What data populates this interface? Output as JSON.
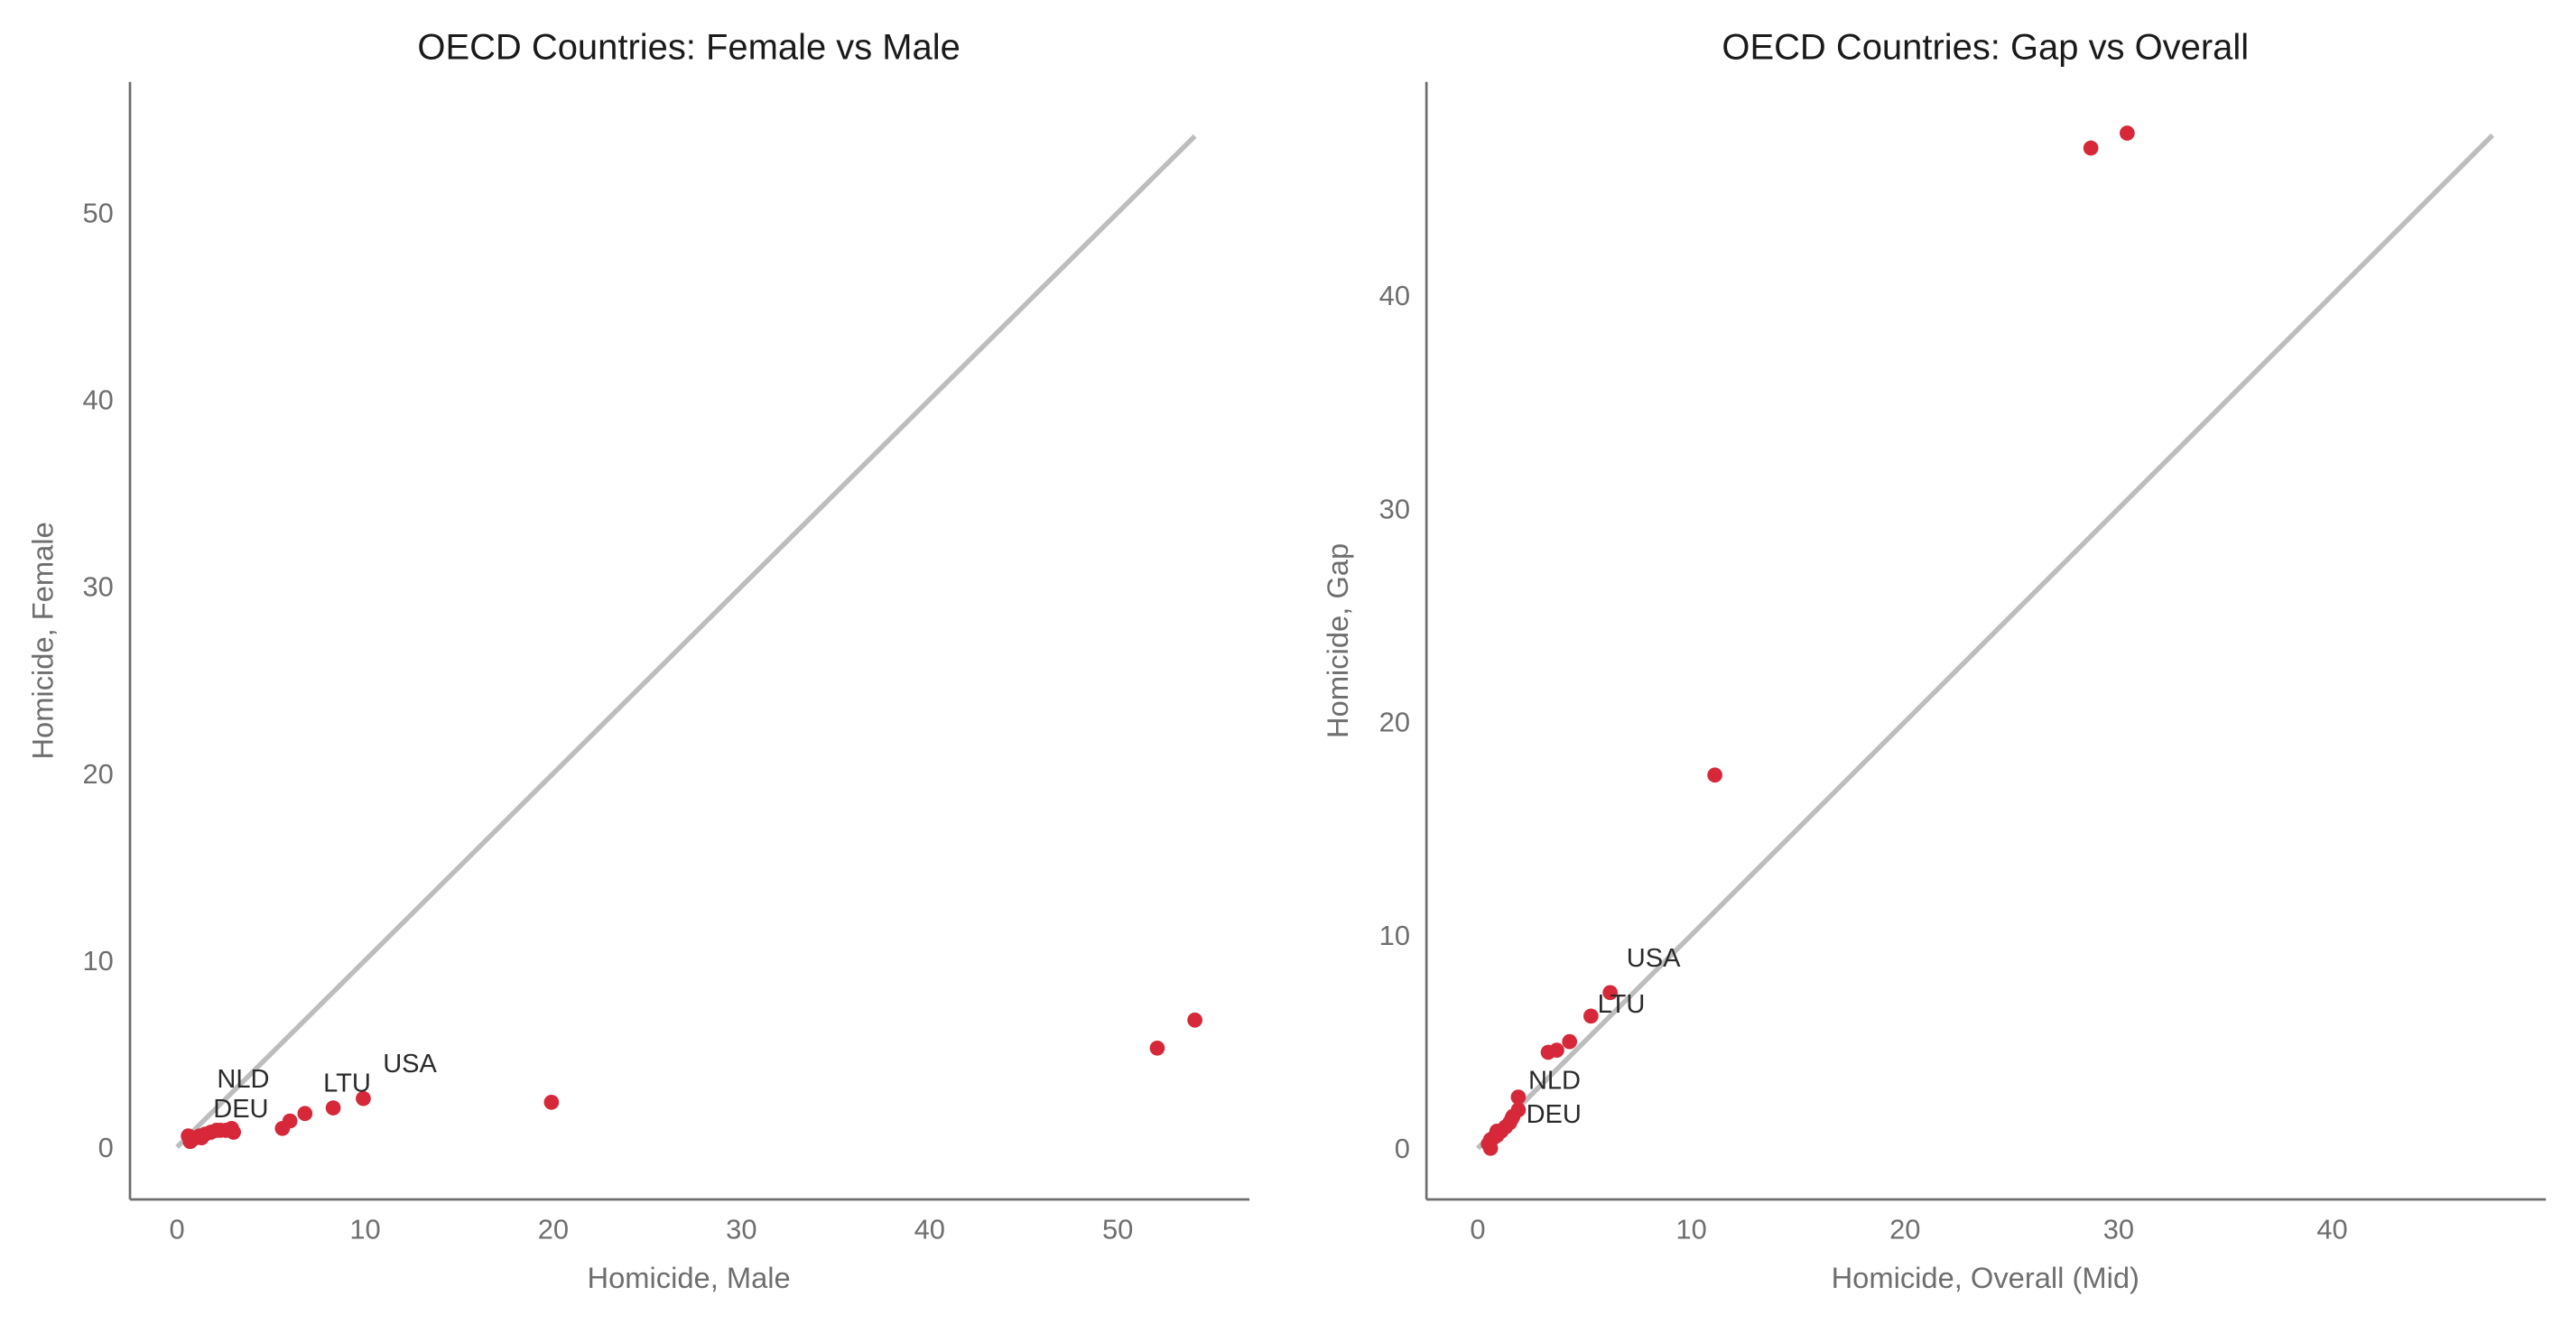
{
  "colors": {
    "point": "#d62839",
    "diagonal": "#bdbdbd",
    "axis": "#6e6e6e"
  },
  "chart_data": [
    {
      "type": "scatter",
      "title": "OECD Countries: Female vs Male",
      "xlabel": "Homicide, Male",
      "ylabel": "Homicide, Female",
      "xlim": [
        -2.5,
        57
      ],
      "ylim": [
        -2.8,
        57
      ],
      "xticks": [
        0,
        10,
        20,
        30,
        40,
        50
      ],
      "yticks": [
        0,
        10,
        20,
        30,
        40,
        50
      ],
      "grid": false,
      "reference_line": {
        "from": [
          0,
          0
        ],
        "to": [
          54.1,
          54.1
        ]
      },
      "points": [
        {
          "x": 54.1,
          "y": 6.8
        },
        {
          "x": 52.1,
          "y": 5.3
        },
        {
          "x": 19.9,
          "y": 2.4
        },
        {
          "x": 9.9,
          "y": 2.6,
          "label": "USA"
        },
        {
          "x": 8.3,
          "y": 2.1,
          "label": "LTU"
        },
        {
          "x": 6.8,
          "y": 1.8
        },
        {
          "x": 6.0,
          "y": 1.4
        },
        {
          "x": 5.6,
          "y": 1.0
        },
        {
          "x": 3.0,
          "y": 0.8
        },
        {
          "x": 2.9,
          "y": 1.0
        },
        {
          "x": 2.6,
          "y": 0.9
        },
        {
          "x": 2.3,
          "y": 0.9,
          "label": "NLD"
        },
        {
          "x": 2.1,
          "y": 0.9,
          "label": "DEU"
        },
        {
          "x": 1.8,
          "y": 0.8
        },
        {
          "x": 1.5,
          "y": 0.7
        },
        {
          "x": 1.3,
          "y": 0.5
        },
        {
          "x": 1.2,
          "y": 0.6
        },
        {
          "x": 1.0,
          "y": 0.5
        },
        {
          "x": 0.8,
          "y": 0.4
        },
        {
          "x": 0.7,
          "y": 0.3
        },
        {
          "x": 0.6,
          "y": 0.6
        }
      ]
    },
    {
      "type": "scatter",
      "title": "OECD Countries: Gap vs Overall",
      "xlabel": "Homicide, Overall (Mid)",
      "ylabel": "Homicide, Gap",
      "xlim": [
        -2.4,
        50
      ],
      "ylim": [
        -2.4,
        50
      ],
      "xticks": [
        0,
        10,
        20,
        30,
        40
      ],
      "yticks": [
        0,
        10,
        20,
        30,
        40
      ],
      "grid": false,
      "reference_line": {
        "from": [
          0,
          0
        ],
        "to": [
          47.5,
          47.5
        ]
      },
      "points": [
        {
          "x": 30.4,
          "y": 47.6
        },
        {
          "x": 28.7,
          "y": 46.9
        },
        {
          "x": 11.1,
          "y": 17.5
        },
        {
          "x": 6.2,
          "y": 7.3,
          "label": "USA"
        },
        {
          "x": 5.3,
          "y": 6.2,
          "label": "LTU"
        },
        {
          "x": 4.3,
          "y": 5.0
        },
        {
          "x": 3.7,
          "y": 4.6
        },
        {
          "x": 3.3,
          "y": 4.5
        },
        {
          "x": 1.9,
          "y": 2.4
        },
        {
          "x": 1.9,
          "y": 1.8
        },
        {
          "x": 1.65,
          "y": 1.5
        },
        {
          "x": 1.6,
          "y": 1.4,
          "label": "NLD"
        },
        {
          "x": 1.5,
          "y": 1.2,
          "label": "DEU"
        },
        {
          "x": 1.3,
          "y": 1.0
        },
        {
          "x": 1.1,
          "y": 0.8
        },
        {
          "x": 0.9,
          "y": 0.6
        },
        {
          "x": 0.9,
          "y": 0.8
        },
        {
          "x": 0.75,
          "y": 0.5
        },
        {
          "x": 0.6,
          "y": 0.4
        },
        {
          "x": 0.5,
          "y": 0.2
        },
        {
          "x": 0.6,
          "y": 0.0
        }
      ]
    }
  ]
}
